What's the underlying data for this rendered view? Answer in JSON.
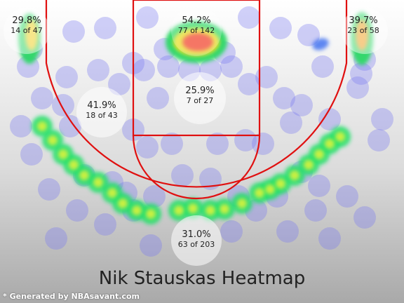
{
  "chart_data": {
    "type": "heatmap",
    "title": "Nik Stauskas Heatmap",
    "credit": "* Generated by NBAsavant.com",
    "zones": [
      {
        "name": "left-corner-three",
        "pct": "29.8%",
        "made_of": "14 of 47",
        "made": 14,
        "attempts": 47
      },
      {
        "name": "restricted-area",
        "pct": "54.2%",
        "made_of": "77 of 142",
        "made": 77,
        "attempts": 142
      },
      {
        "name": "right-corner-three",
        "pct": "39.7%",
        "made_of": "23 of 58",
        "made": 23,
        "attempts": 58
      },
      {
        "name": "left-mid-range",
        "pct": "41.9%",
        "made_of": "18 of 43",
        "made": 18,
        "attempts": 43
      },
      {
        "name": "paint-non-ra",
        "pct": "25.9%",
        "made_of": "7 of 27",
        "made": 7,
        "attempts": 27
      },
      {
        "name": "above-break-three",
        "pct": "31.0%",
        "made_of": "63 of 203",
        "made": 63,
        "attempts": 203
      }
    ]
  }
}
